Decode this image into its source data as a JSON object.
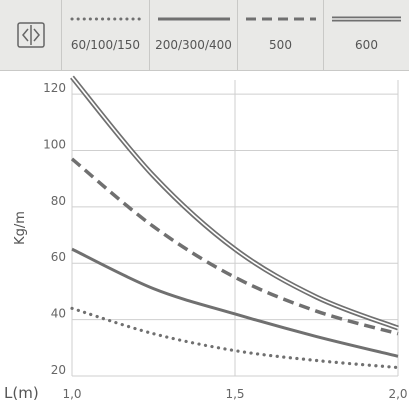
{
  "legend": {
    "icon": "resize-horizontal-icon",
    "items": [
      {
        "label": "60/100/150",
        "style": "dotted"
      },
      {
        "label": "200/300/400",
        "style": "solid"
      },
      {
        "label": "500",
        "style": "dashed"
      },
      {
        "label": "600",
        "style": "double"
      }
    ]
  },
  "chart_data": {
    "type": "line",
    "xlabel": "L(m)",
    "ylabel": "Kg/m",
    "xlim": [
      1.0,
      2.0
    ],
    "ylim": [
      20,
      125
    ],
    "x_ticks": [
      "1,0",
      "1,5",
      "2,0"
    ],
    "y_ticks": [
      "20",
      "40",
      "60",
      "80",
      "100",
      "120"
    ],
    "x_tick_values": [
      1.0,
      1.5,
      2.0
    ],
    "y_tick_values": [
      20,
      40,
      60,
      80,
      100,
      120
    ],
    "grid": true,
    "line_color": "#707070",
    "x": [
      1.0,
      1.25,
      1.5,
      1.75,
      2.0
    ],
    "series": [
      {
        "name": "60/100/150",
        "style": "dotted",
        "values": [
          44,
          35,
          29,
          25.5,
          23
        ]
      },
      {
        "name": "200/300/400",
        "style": "solid",
        "values": [
          65,
          51,
          42,
          34,
          27
        ]
      },
      {
        "name": "500",
        "style": "dashed",
        "values": [
          97,
          73,
          55,
          43,
          35
        ]
      },
      {
        "name": "600",
        "style": "double",
        "values": [
          126,
          91,
          65,
          48,
          37
        ]
      }
    ]
  }
}
